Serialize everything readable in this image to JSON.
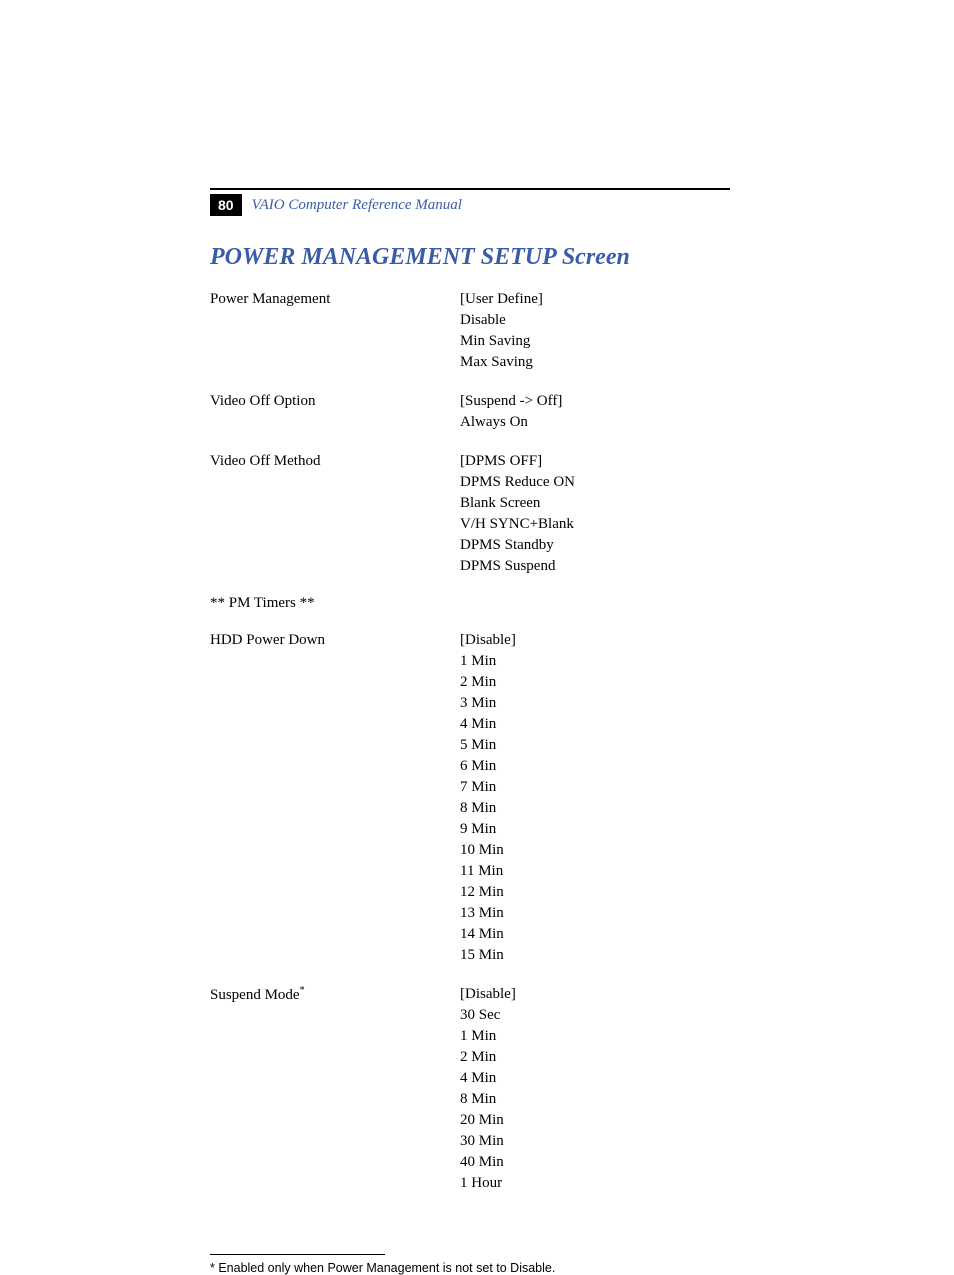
{
  "header": {
    "page_number": "80",
    "manual_title": "VAIO Computer Reference Manual"
  },
  "section_title": "POWER MANAGEMENT SETUP Screen",
  "settings": [
    {
      "label": "Power Management",
      "values": [
        "[User Define]",
        "Disable",
        "Min Saving",
        "Max Saving"
      ]
    },
    {
      "label": "Video Off Option",
      "values": [
        "[Suspend -> Off]",
        "Always On"
      ]
    },
    {
      "label": "Video Off Method",
      "values": [
        "[DPMS OFF]",
        "DPMS Reduce ON",
        "Blank Screen",
        "V/H SYNC+Blank",
        "DPMS Standby",
        "DPMS Suspend"
      ]
    }
  ],
  "pm_timers_header": "** PM Timers **",
  "pm_timers": [
    {
      "label": "HDD Power Down",
      "superscript": "",
      "values": [
        "[Disable]",
        "1 Min",
        "2 Min",
        "3 Min",
        "4 Min",
        "5 Min",
        "6 Min",
        "7 Min",
        "8 Min",
        "9 Min",
        "10 Min",
        "11 Min",
        "12 Min",
        "13 Min",
        "14 Min",
        "15 Min"
      ]
    },
    {
      "label": "Suspend Mode",
      "superscript": "*",
      "values": [
        "[Disable]",
        "30 Sec",
        "1 Min",
        "2 Min",
        "4 Min",
        "8 Min",
        "20 Min",
        "30 Min",
        "40 Min",
        "1 Hour"
      ]
    }
  ],
  "footnote": "*   Enabled only when Power Management is not set to Disable."
}
